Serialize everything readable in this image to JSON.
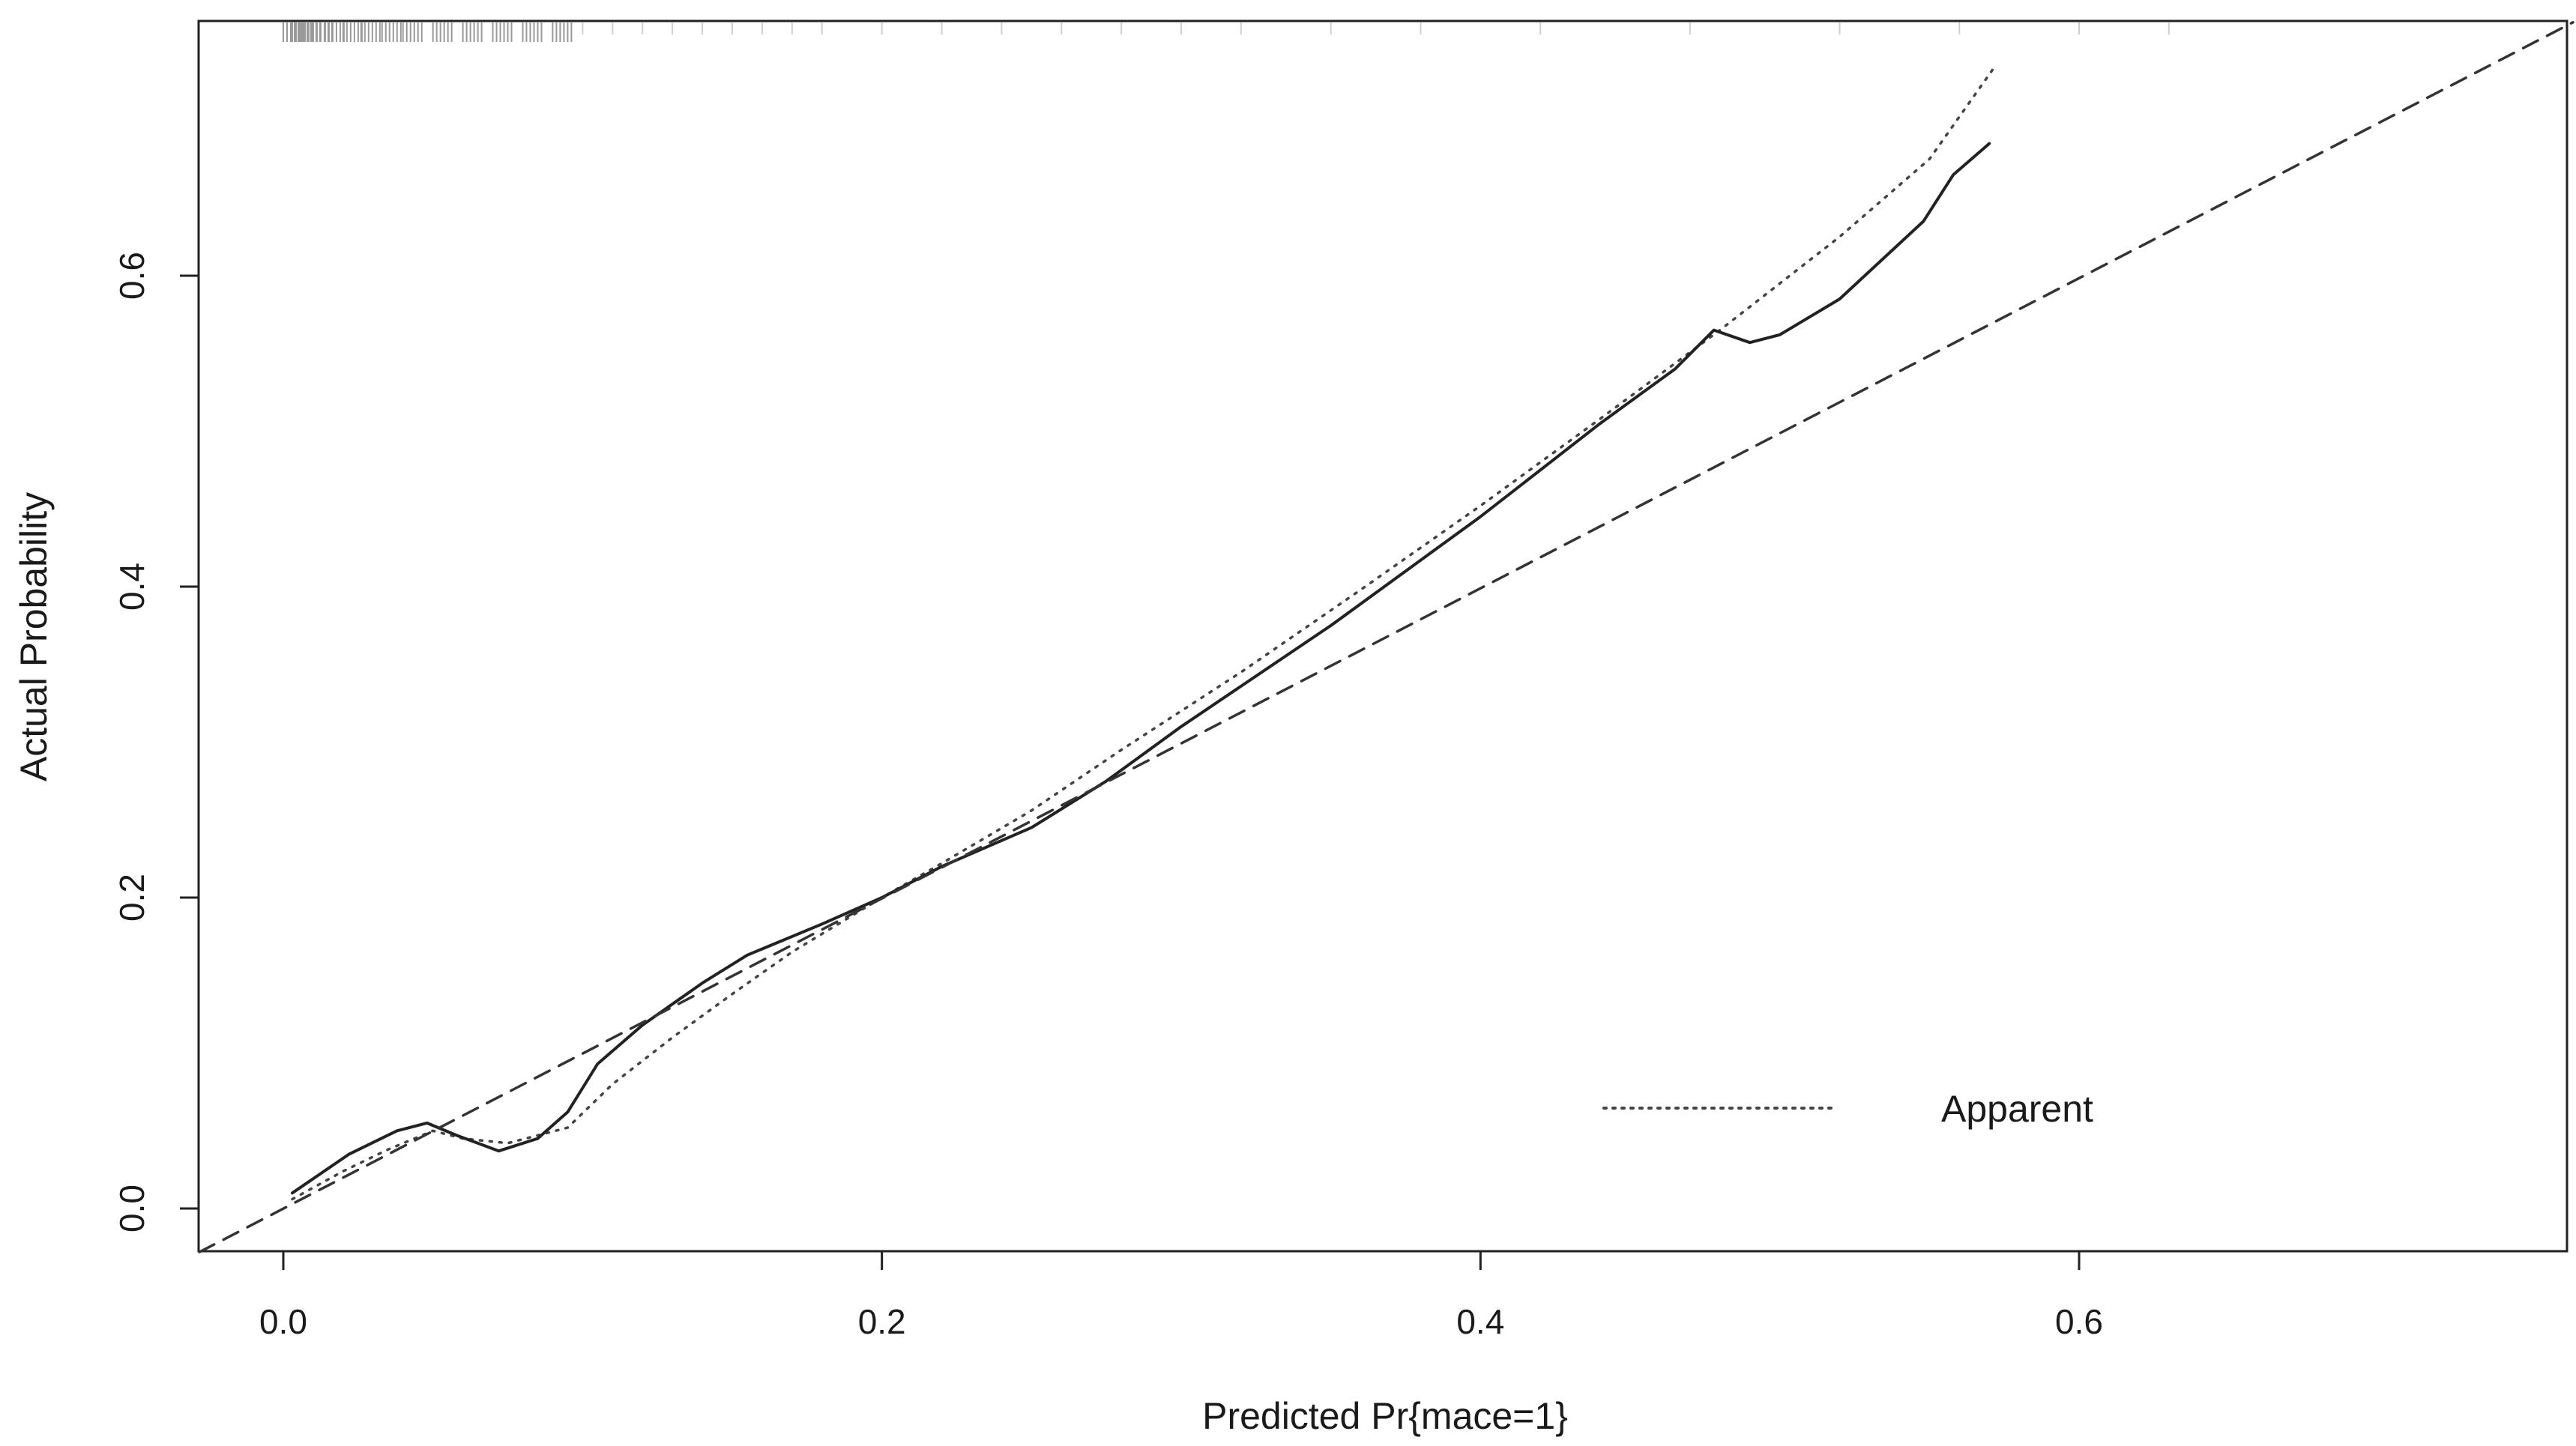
{
  "chart_data": {
    "type": "line",
    "title": "",
    "xlabel": "Predicted Pr{mace=1}",
    "ylabel": "Actual Probability",
    "xlim": [
      -0.028,
      0.765
    ],
    "ylim": [
      -0.028,
      0.763
    ],
    "xticks": [
      0.0,
      0.2,
      0.4,
      0.6
    ],
    "xtick_labels": [
      "0.0",
      "0.2",
      "0.4",
      "0.6"
    ],
    "yticks": [
      0.0,
      0.2,
      0.4,
      0.6
    ],
    "ytick_labels": [
      "0.0",
      "0.2",
      "0.4",
      "0.6"
    ],
    "grid": false,
    "legend_position": "bottom-right",
    "legend_label": "Apparent",
    "series": [
      {
        "name": "Apparent",
        "style": "dotted",
        "color": "#444444",
        "points": [
          [
            0.003,
            0.006
          ],
          [
            0.02,
            0.024
          ],
          [
            0.035,
            0.038
          ],
          [
            0.05,
            0.05
          ],
          [
            0.06,
            0.045
          ],
          [
            0.075,
            0.042
          ],
          [
            0.095,
            0.052
          ],
          [
            0.11,
            0.08
          ],
          [
            0.13,
            0.11
          ],
          [
            0.15,
            0.138
          ],
          [
            0.17,
            0.165
          ],
          [
            0.2,
            0.2
          ],
          [
            0.22,
            0.222
          ],
          [
            0.25,
            0.256
          ],
          [
            0.28,
            0.295
          ],
          [
            0.32,
            0.345
          ],
          [
            0.36,
            0.398
          ],
          [
            0.4,
            0.452
          ],
          [
            0.44,
            0.508
          ],
          [
            0.48,
            0.565
          ],
          [
            0.52,
            0.625
          ],
          [
            0.55,
            0.675
          ],
          [
            0.572,
            0.735
          ]
        ]
      },
      {
        "style": "solid",
        "color": "#222222",
        "points": [
          [
            0.003,
            0.01
          ],
          [
            0.022,
            0.035
          ],
          [
            0.038,
            0.05
          ],
          [
            0.048,
            0.055
          ],
          [
            0.058,
            0.047
          ],
          [
            0.072,
            0.037
          ],
          [
            0.085,
            0.045
          ],
          [
            0.095,
            0.062
          ],
          [
            0.105,
            0.093
          ],
          [
            0.12,
            0.118
          ],
          [
            0.14,
            0.145
          ],
          [
            0.155,
            0.163
          ],
          [
            0.18,
            0.183
          ],
          [
            0.2,
            0.2
          ],
          [
            0.22,
            0.22
          ],
          [
            0.25,
            0.245
          ],
          [
            0.275,
            0.275
          ],
          [
            0.3,
            0.31
          ],
          [
            0.35,
            0.375
          ],
          [
            0.4,
            0.445
          ],
          [
            0.44,
            0.505
          ],
          [
            0.465,
            0.54
          ],
          [
            0.478,
            0.565
          ],
          [
            0.49,
            0.557
          ],
          [
            0.5,
            0.562
          ],
          [
            0.52,
            0.585
          ],
          [
            0.548,
            0.635
          ],
          [
            0.558,
            0.665
          ],
          [
            0.57,
            0.685
          ]
        ]
      },
      {
        "style": "dashed",
        "color": "#333333",
        "points": [
          [
            -0.028,
            -0.028
          ],
          [
            0.765,
            0.763
          ]
        ]
      }
    ],
    "rug": {
      "description_values": [
        0.0,
        0.003,
        0.006,
        0.01,
        0.014,
        0.02,
        0.026,
        0.033,
        0.04,
        0.05,
        0.06,
        0.07,
        0.08,
        0.09,
        0.1,
        0.11,
        0.12,
        0.13,
        0.14,
        0.15,
        0.16,
        0.17,
        0.18,
        0.2,
        0.22,
        0.24,
        0.26,
        0.28,
        0.3,
        0.32,
        0.35,
        0.38,
        0.42,
        0.47,
        0.52,
        0.56,
        0.6,
        0.63
      ]
    }
  }
}
